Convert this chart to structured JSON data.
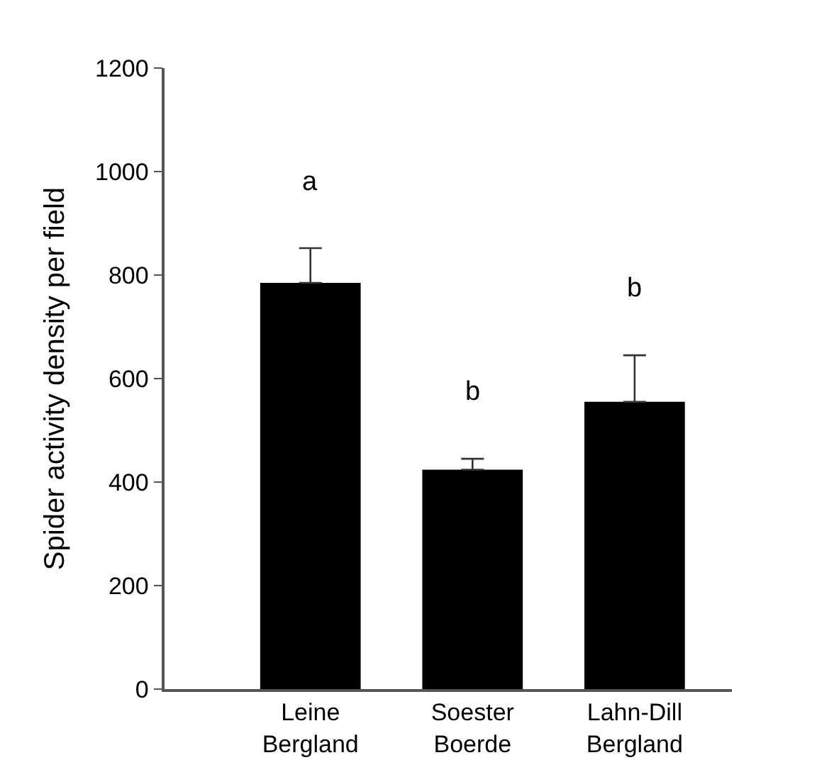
{
  "chart_data": {
    "type": "bar",
    "categories": [
      "Leine\nBergland",
      "Soester\nBoerde",
      "Lahn-Dill\nBergland"
    ],
    "values": [
      785,
      424,
      555
    ],
    "errors": [
      67,
      21,
      90
    ],
    "color": "#000000",
    "ylabel": "Spider activity density per field",
    "ylim": [
      0,
      1200
    ],
    "yticks": [
      0,
      200,
      400,
      600,
      800,
      1000,
      1200
    ],
    "annotations": [
      "a",
      "b",
      "b"
    ]
  }
}
